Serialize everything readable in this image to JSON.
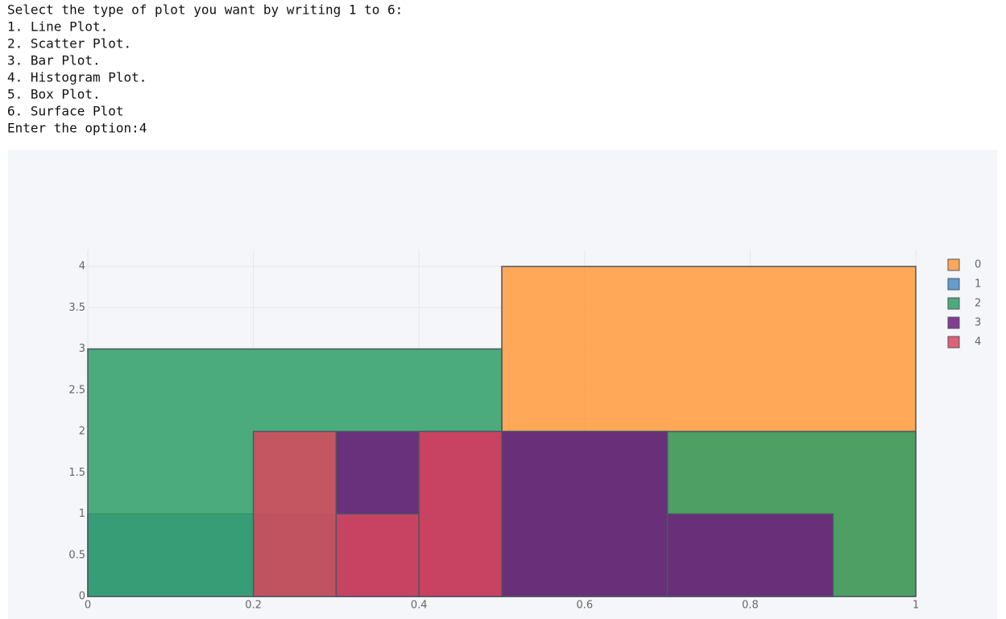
{
  "console": {
    "lines": [
      "Select the type of plot you want by writing 1 to 6:",
      "1. Line Plot.",
      "2. Scatter Plot.",
      "3. Bar Plot.",
      "4. Histogram Plot.",
      "5. Box Plot.",
      "6. Surface Plot",
      "Enter the option:4"
    ]
  },
  "chart_data": {
    "type": "histogram",
    "series": [
      {
        "name": "0",
        "color": "#ff9a3c",
        "bins": [
          0.5,
          1
        ],
        "values": [
          4
        ]
      },
      {
        "name": "1",
        "color": "#4a8cc7",
        "bins": [
          0,
          0.5
        ],
        "values": [
          1
        ]
      },
      {
        "name": "2",
        "color": "#2e9e66",
        "bins": [
          0,
          0.5,
          1
        ],
        "values": [
          3,
          2
        ]
      },
      {
        "name": "3",
        "color": "#6e1b7c",
        "bins": [
          0.3,
          0.5,
          0.7,
          0.9
        ],
        "values": [
          2,
          2,
          1
        ]
      },
      {
        "name": "4",
        "color": "#d9475e",
        "bins": [
          0.2,
          0.3,
          0.4,
          0.5
        ],
        "values": [
          2,
          1,
          2
        ]
      }
    ],
    "xlim": [
      0,
      1
    ],
    "xticks": [
      0,
      0.2,
      0.4,
      0.6,
      0.8,
      1
    ],
    "ylim": [
      0,
      4.2
    ],
    "yticks": [
      0,
      0.5,
      1,
      1.5,
      2,
      2.5,
      3,
      3.5,
      4
    ],
    "grid": true
  }
}
